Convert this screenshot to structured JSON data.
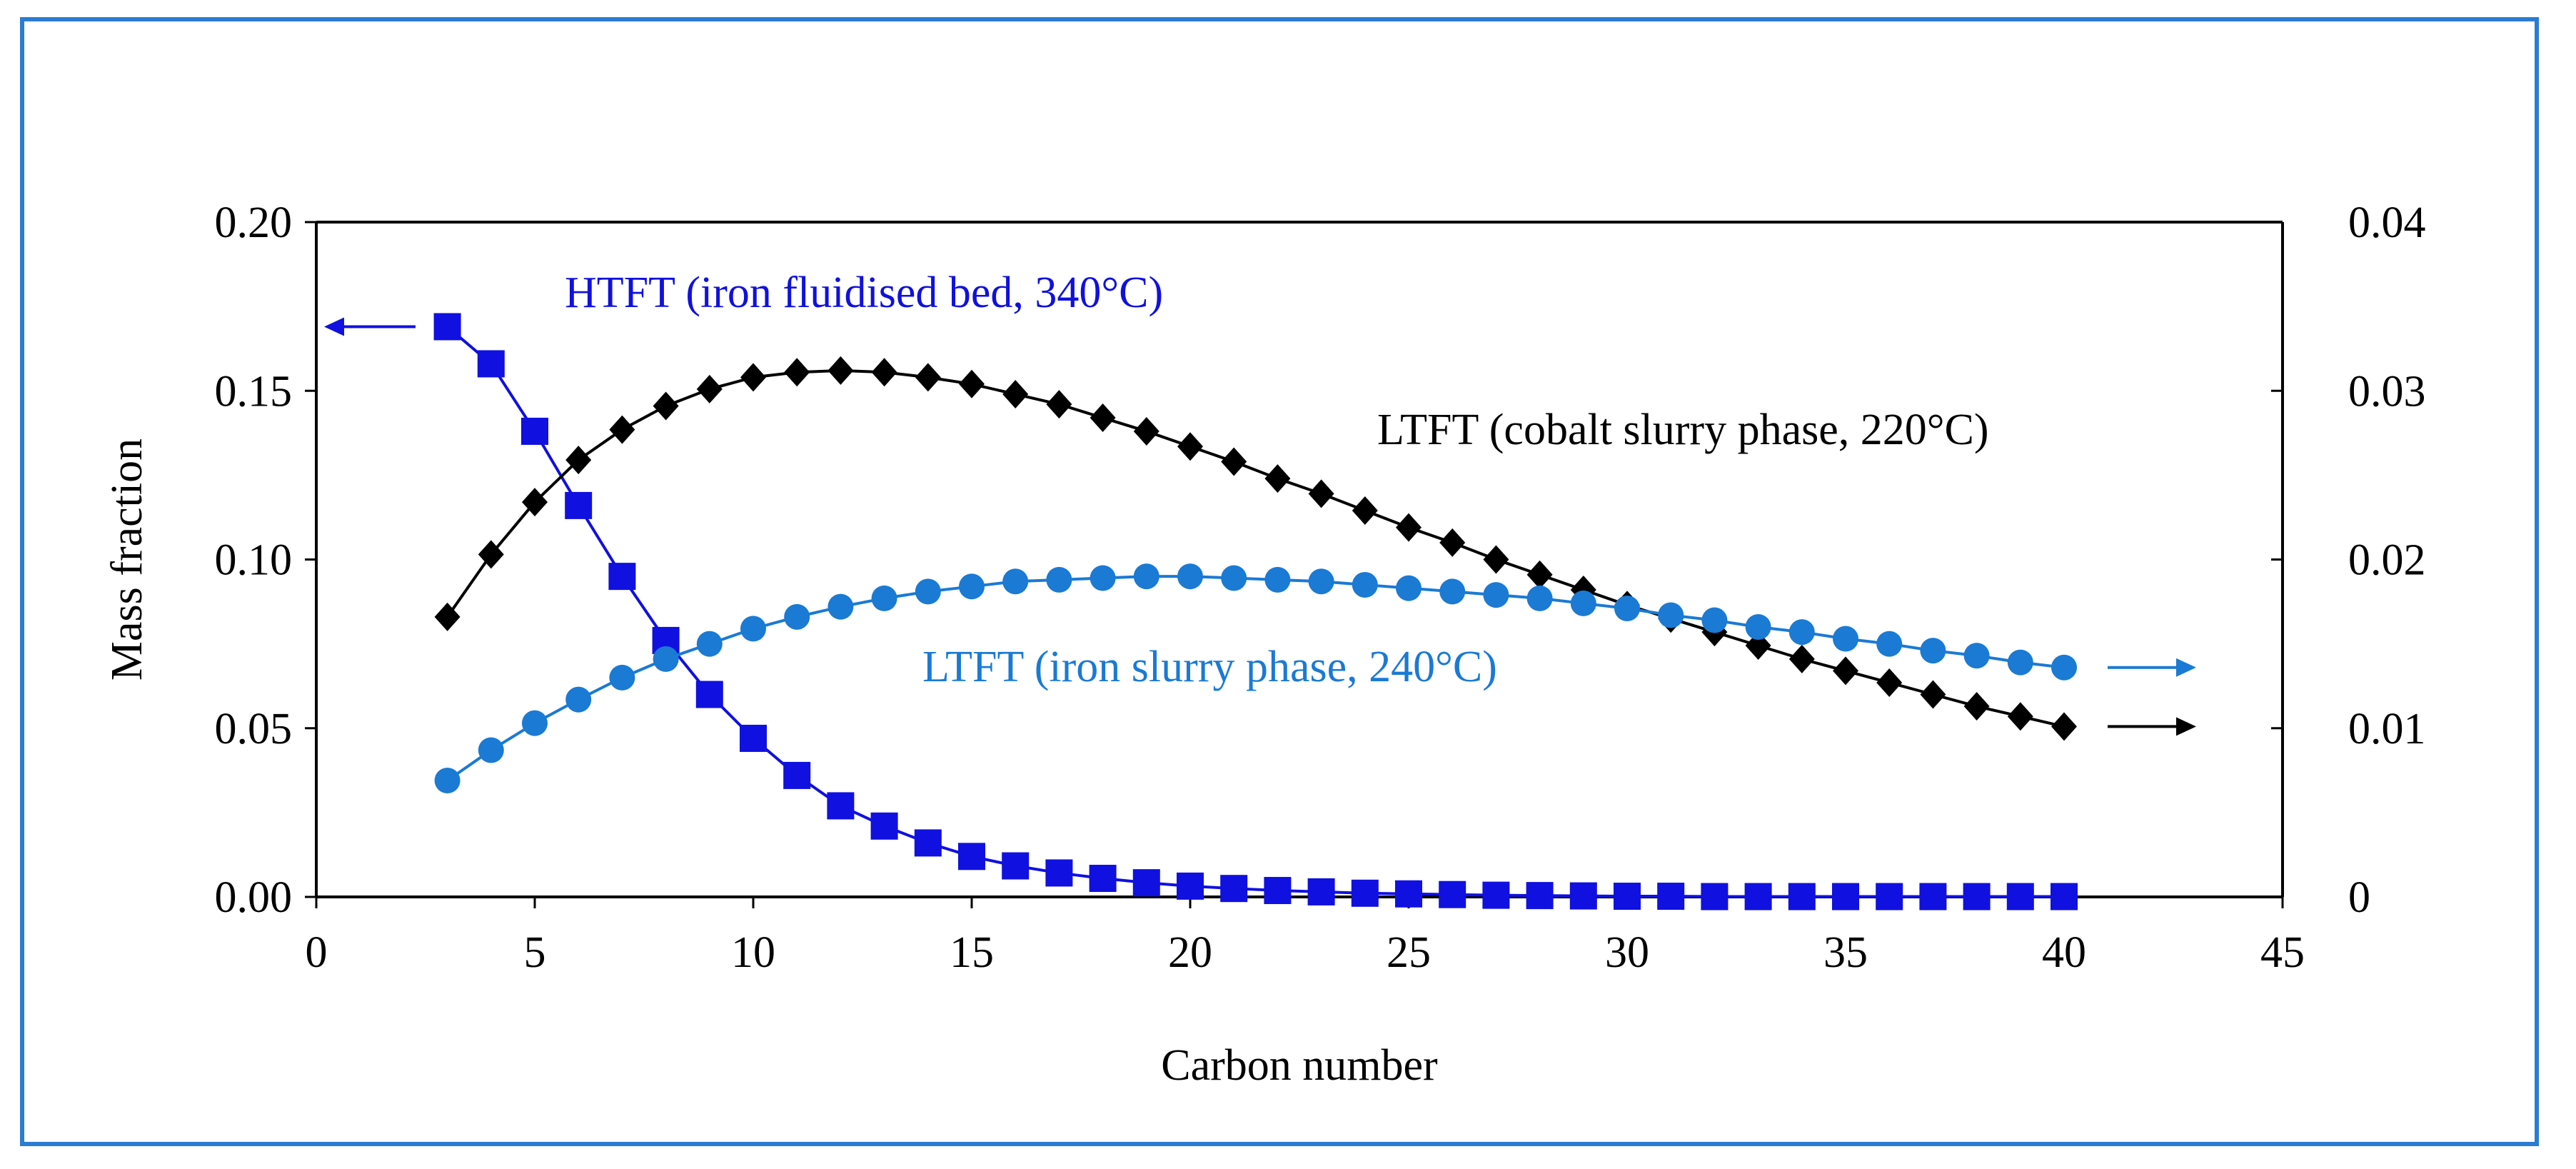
{
  "chart_data": {
    "type": "line",
    "title": "",
    "xlabel": "Carbon number",
    "ylabel": "Mass fraction",
    "xlim": [
      0,
      45
    ],
    "ylim_left": [
      0,
      0.2
    ],
    "ylim_right": [
      0,
      0.04
    ],
    "x_ticks": [
      "0",
      "5",
      "10",
      "15",
      "20",
      "25",
      "30",
      "35",
      "40",
      "45"
    ],
    "y_left_ticks": [
      "0.00",
      "0.05",
      "0.10",
      "0.15",
      "0.20"
    ],
    "y_right_ticks": [
      "0",
      "0.01",
      "0.02",
      "0.03",
      "0.04"
    ],
    "series": [
      {
        "name": "HTFT (iron fluidised bed, 340°C)",
        "axis": "left",
        "color": "#1010e0",
        "marker": "square",
        "arrow": "left",
        "x": [
          3,
          4,
          5,
          6,
          7,
          8,
          9,
          10,
          11,
          12,
          13,
          14,
          15,
          16,
          17,
          18,
          19,
          20,
          21,
          22,
          23,
          24,
          25,
          26,
          27,
          28,
          29,
          30,
          31,
          32,
          33,
          34,
          35,
          36,
          37,
          38,
          39,
          40
        ],
        "values": [
          0.169,
          0.158,
          0.138,
          0.116,
          0.095,
          0.076,
          0.06,
          0.047,
          0.036,
          0.027,
          0.021,
          0.016,
          0.012,
          0.0092,
          0.0071,
          0.0055,
          0.0042,
          0.0032,
          0.0025,
          0.0019,
          0.0015,
          0.0011,
          0.0009,
          0.0007,
          0.0005,
          0.0004,
          0.0003,
          0.0002,
          0.0002,
          0.0001,
          0.0001,
          0.0001,
          0.0001,
          0.0001,
          0.0001,
          0.0001,
          0.0001,
          0.0001
        ]
      },
      {
        "name": "LTFT (cobalt slurry phase, 220°C)",
        "axis": "right",
        "color": "#000000",
        "marker": "diamond",
        "arrow": "right",
        "x": [
          3,
          4,
          5,
          6,
          7,
          8,
          9,
          10,
          11,
          12,
          13,
          14,
          15,
          16,
          17,
          18,
          19,
          20,
          21,
          22,
          23,
          24,
          25,
          26,
          27,
          28,
          29,
          30,
          31,
          32,
          33,
          34,
          35,
          36,
          37,
          38,
          39,
          40
        ],
        "values": [
          0.0166,
          0.0203,
          0.0234,
          0.0259,
          0.0277,
          0.0291,
          0.0301,
          0.0308,
          0.0311,
          0.0312,
          0.0311,
          0.0308,
          0.0304,
          0.0298,
          0.0292,
          0.0284,
          0.0276,
          0.0267,
          0.0258,
          0.0248,
          0.0239,
          0.0229,
          0.0219,
          0.021,
          0.02,
          0.0191,
          0.0182,
          0.0173,
          0.0165,
          0.0157,
          0.0149,
          0.0141,
          0.0134,
          0.0127,
          0.012,
          0.0113,
          0.0107,
          0.0101
        ]
      },
      {
        "name": "LTFT (iron slurry phase, 240°C)",
        "axis": "right",
        "color": "#1a7ad4",
        "marker": "circle",
        "arrow": "right",
        "x": [
          3,
          4,
          5,
          6,
          7,
          8,
          9,
          10,
          11,
          12,
          13,
          14,
          15,
          16,
          17,
          18,
          19,
          20,
          21,
          22,
          23,
          24,
          25,
          26,
          27,
          28,
          29,
          30,
          31,
          32,
          33,
          34,
          35,
          36,
          37,
          38,
          39,
          40
        ],
        "values": [
          0.0069,
          0.0087,
          0.0103,
          0.0117,
          0.013,
          0.0141,
          0.015,
          0.0159,
          0.0166,
          0.0172,
          0.0177,
          0.0181,
          0.0184,
          0.0187,
          0.0188,
          0.0189,
          0.019,
          0.019,
          0.0189,
          0.0188,
          0.0187,
          0.0185,
          0.0183,
          0.0181,
          0.0179,
          0.0177,
          0.0174,
          0.0171,
          0.0167,
          0.0164,
          0.016,
          0.0157,
          0.0153,
          0.015,
          0.0146,
          0.0143,
          0.0139,
          0.0136
        ]
      }
    ]
  }
}
